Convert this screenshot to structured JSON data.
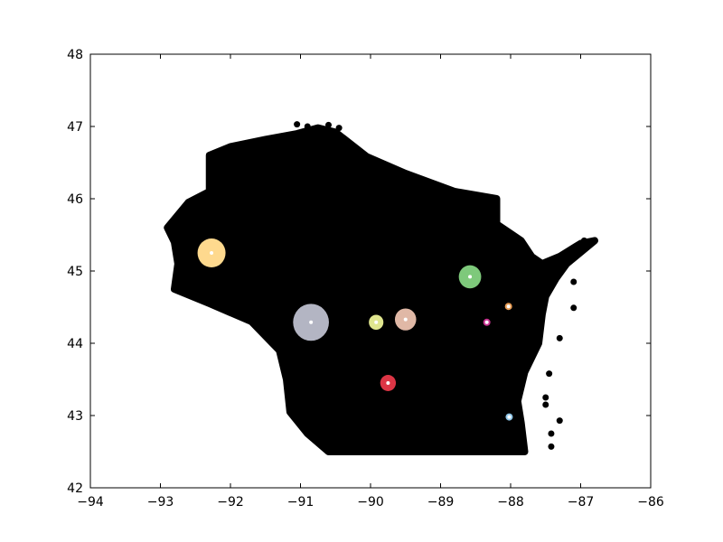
{
  "chart_data": {
    "type": "scatter",
    "title": "",
    "xlabel": "",
    "ylabel": "",
    "xlim": [
      -94,
      -86
    ],
    "ylim": [
      42,
      48
    ],
    "grid": false,
    "xticks": [
      -94,
      -93,
      -92,
      -91,
      -90,
      -89,
      -88,
      -87,
      -86
    ],
    "yticks": [
      42,
      43,
      44,
      45,
      46,
      47,
      48
    ],
    "xtick_labels": [
      "−94",
      "−93",
      "−92",
      "−91",
      "−90",
      "−89",
      "−88",
      "−87",
      "−86"
    ],
    "ytick_labels": [
      "42",
      "43",
      "44",
      "45",
      "46",
      "47",
      "48"
    ],
    "background_points": {
      "color": "#000000",
      "description_region": "Wisconsin",
      "outline": [
        [
          -92.9,
          45.6
        ],
        [
          -92.6,
          45.95
        ],
        [
          -92.3,
          46.1
        ],
        [
          -92.3,
          46.6
        ],
        [
          -92.0,
          46.72
        ],
        [
          -91.5,
          46.82
        ],
        [
          -91.05,
          46.9
        ],
        [
          -90.75,
          46.98
        ],
        [
          -90.5,
          46.92
        ],
        [
          -90.05,
          46.58
        ],
        [
          -89.5,
          46.35
        ],
        [
          -88.8,
          46.1
        ],
        [
          -88.2,
          46.0
        ],
        [
          -88.2,
          45.65
        ],
        [
          -87.85,
          45.42
        ],
        [
          -87.7,
          45.2
        ],
        [
          -87.55,
          45.1
        ],
        [
          -87.3,
          45.2
        ],
        [
          -87.0,
          45.38
        ],
        [
          -86.8,
          45.42
        ],
        [
          -87.2,
          45.1
        ],
        [
          -87.35,
          44.9
        ],
        [
          -87.5,
          44.65
        ],
        [
          -87.55,
          44.4
        ],
        [
          -87.6,
          44.0
        ],
        [
          -87.8,
          43.6
        ],
        [
          -87.9,
          43.2
        ],
        [
          -87.85,
          42.9
        ],
        [
          -87.8,
          42.5
        ],
        [
          -88.5,
          42.5
        ],
        [
          -89.5,
          42.5
        ],
        [
          -90.6,
          42.5
        ],
        [
          -90.9,
          42.75
        ],
        [
          -91.15,
          43.05
        ],
        [
          -91.2,
          43.5
        ],
        [
          -91.3,
          43.9
        ],
        [
          -91.7,
          44.3
        ],
        [
          -92.3,
          44.55
        ],
        [
          -92.8,
          44.75
        ],
        [
          -92.75,
          45.1
        ],
        [
          -92.8,
          45.4
        ]
      ],
      "outliers": [
        [
          -91.05,
          47.03
        ],
        [
          -90.9,
          47.0
        ],
        [
          -90.6,
          47.02
        ],
        [
          -90.45,
          46.98
        ],
        [
          -90.38,
          46.72
        ],
        [
          -87.1,
          44.49
        ],
        [
          -87.3,
          44.07
        ],
        [
          -87.45,
          43.58
        ],
        [
          -87.5,
          43.25
        ],
        [
          -87.5,
          43.15
        ],
        [
          -87.3,
          42.93
        ],
        [
          -87.42,
          42.75
        ],
        [
          -87.42,
          42.57
        ],
        [
          -86.95,
          45.42
        ],
        [
          -87.2,
          45.25
        ],
        [
          -87.1,
          44.85
        ]
      ]
    },
    "clusters": [
      {
        "center": [
          -92.27,
          45.25
        ],
        "radius": 0.25,
        "color": "#fed98e"
      },
      {
        "center": [
          -90.85,
          44.29
        ],
        "radius": 0.32,
        "color": "#b3b5c3"
      },
      {
        "center": [
          -89.92,
          44.29
        ],
        "radius": 0.13,
        "color": "#e0e68f"
      },
      {
        "center": [
          -89.5,
          44.33
        ],
        "radius": 0.19,
        "color": "#e0b8a6"
      },
      {
        "center": [
          -89.75,
          43.45
        ],
        "radius": 0.14,
        "color": "#dc3545"
      },
      {
        "center": [
          -88.58,
          44.92
        ],
        "radius": 0.2,
        "color": "#7ec97b"
      },
      {
        "center": [
          -88.34,
          44.29
        ],
        "radius": 0.06,
        "color": "#c7318f"
      },
      {
        "center": [
          -88.03,
          44.51
        ],
        "radius": 0.04,
        "color": "#e69a52"
      },
      {
        "center": [
          -88.02,
          42.98
        ],
        "radius": 0.035,
        "color": "#8fc6e8"
      }
    ],
    "center_marker_color": "#ffffff",
    "axes_color": "#000000"
  }
}
